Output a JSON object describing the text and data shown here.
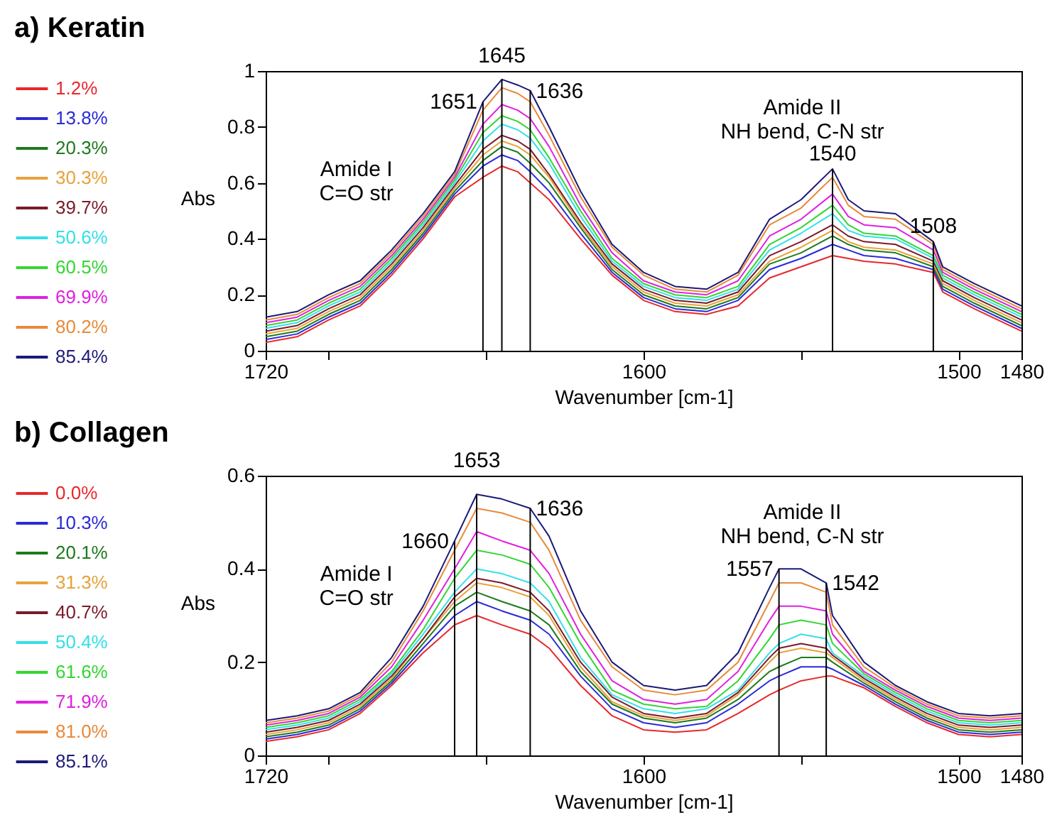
{
  "chart_data": [
    {
      "type": "line",
      "title": "a) Keratin",
      "xlabel": "Wavenumber [cm-1]",
      "ylabel": "Abs",
      "legend": "left",
      "marker": "none",
      "line_style": "solid",
      "xlim": [
        1720,
        1480
      ],
      "xticks": [
        1720,
        {
          "value": 1700,
          "label": null
        },
        {
          "value": 1650,
          "label": null
        },
        1600,
        {
          "value": 1550,
          "label": null
        },
        1500,
        1480
      ],
      "ylim": [
        0,
        1
      ],
      "yticks": [
        0,
        0.2,
        0.4,
        0.6,
        0.8,
        1
      ],
      "x": [
        1720,
        1710,
        1700,
        1690,
        1680,
        1670,
        1660,
        1651,
        1645,
        1640,
        1636,
        1630,
        1620,
        1610,
        1600,
        1590,
        1580,
        1570,
        1560,
        1550,
        1540,
        1535,
        1530,
        1520,
        1508,
        1505,
        1495,
        1480
      ],
      "series": [
        {
          "name": "1.2%",
          "color": "#e8282b",
          "values": [
            0.03,
            0.05,
            0.11,
            0.16,
            0.27,
            0.4,
            0.55,
            0.62,
            0.66,
            0.64,
            0.6,
            0.54,
            0.4,
            0.27,
            0.18,
            0.14,
            0.13,
            0.16,
            0.26,
            0.3,
            0.34,
            0.33,
            0.32,
            0.31,
            0.28,
            0.21,
            0.15,
            0.07
          ]
        },
        {
          "name": "13.8%",
          "color": "#2a2ad8",
          "values": [
            0.04,
            0.06,
            0.12,
            0.17,
            0.28,
            0.41,
            0.56,
            0.66,
            0.7,
            0.68,
            0.64,
            0.57,
            0.42,
            0.28,
            0.19,
            0.15,
            0.14,
            0.18,
            0.29,
            0.33,
            0.38,
            0.36,
            0.34,
            0.33,
            0.29,
            0.22,
            0.16,
            0.08
          ]
        },
        {
          "name": "20.3%",
          "color": "#1e7a1e",
          "values": [
            0.05,
            0.07,
            0.13,
            0.18,
            0.29,
            0.42,
            0.57,
            0.68,
            0.73,
            0.71,
            0.67,
            0.6,
            0.44,
            0.29,
            0.2,
            0.16,
            0.15,
            0.19,
            0.31,
            0.35,
            0.41,
            0.38,
            0.36,
            0.35,
            0.3,
            0.23,
            0.17,
            0.09
          ]
        },
        {
          "name": "30.3%",
          "color": "#e8a23c",
          "values": [
            0.06,
            0.08,
            0.14,
            0.19,
            0.3,
            0.43,
            0.58,
            0.7,
            0.75,
            0.73,
            0.7,
            0.62,
            0.45,
            0.3,
            0.21,
            0.17,
            0.16,
            0.2,
            0.32,
            0.37,
            0.43,
            0.39,
            0.37,
            0.36,
            0.31,
            0.24,
            0.18,
            0.1
          ]
        },
        {
          "name": "39.7%",
          "color": "#7a1a2a",
          "values": [
            0.07,
            0.09,
            0.15,
            0.2,
            0.31,
            0.44,
            0.59,
            0.72,
            0.77,
            0.75,
            0.72,
            0.63,
            0.46,
            0.31,
            0.22,
            0.18,
            0.17,
            0.21,
            0.34,
            0.39,
            0.45,
            0.41,
            0.39,
            0.38,
            0.32,
            0.25,
            0.19,
            0.11
          ]
        },
        {
          "name": "50.6%",
          "color": "#33e0e8",
          "values": [
            0.08,
            0.1,
            0.16,
            0.21,
            0.32,
            0.45,
            0.6,
            0.75,
            0.81,
            0.79,
            0.76,
            0.67,
            0.48,
            0.32,
            0.23,
            0.19,
            0.18,
            0.22,
            0.36,
            0.42,
            0.49,
            0.43,
            0.41,
            0.4,
            0.33,
            0.26,
            0.2,
            0.12
          ]
        },
        {
          "name": "60.5%",
          "color": "#33d633",
          "values": [
            0.09,
            0.11,
            0.17,
            0.22,
            0.33,
            0.46,
            0.61,
            0.78,
            0.84,
            0.82,
            0.79,
            0.69,
            0.5,
            0.33,
            0.24,
            0.2,
            0.19,
            0.23,
            0.38,
            0.44,
            0.52,
            0.45,
            0.42,
            0.41,
            0.34,
            0.27,
            0.21,
            0.13
          ]
        },
        {
          "name": "69.9%",
          "color": "#e020e0",
          "values": [
            0.1,
            0.12,
            0.18,
            0.23,
            0.34,
            0.47,
            0.62,
            0.81,
            0.88,
            0.86,
            0.83,
            0.73,
            0.52,
            0.35,
            0.25,
            0.21,
            0.2,
            0.25,
            0.41,
            0.47,
            0.56,
            0.48,
            0.45,
            0.44,
            0.36,
            0.28,
            0.22,
            0.14
          ]
        },
        {
          "name": "80.2%",
          "color": "#e88a3a",
          "values": [
            0.11,
            0.13,
            0.19,
            0.24,
            0.35,
            0.48,
            0.63,
            0.86,
            0.94,
            0.92,
            0.89,
            0.77,
            0.55,
            0.37,
            0.27,
            0.22,
            0.21,
            0.27,
            0.45,
            0.51,
            0.62,
            0.52,
            0.48,
            0.47,
            0.38,
            0.29,
            0.23,
            0.15
          ]
        },
        {
          "name": "85.4%",
          "color": "#1a1a78",
          "values": [
            0.12,
            0.14,
            0.2,
            0.25,
            0.36,
            0.49,
            0.64,
            0.89,
            0.97,
            0.95,
            0.93,
            0.8,
            0.57,
            0.38,
            0.28,
            0.23,
            0.22,
            0.28,
            0.47,
            0.54,
            0.65,
            0.54,
            0.5,
            0.49,
            0.39,
            0.3,
            0.24,
            0.16
          ]
        }
      ],
      "ref_lines": [
        {
          "axis": "x",
          "value": 1651,
          "label": "1651"
        },
        {
          "axis": "x",
          "value": 1645,
          "label": "1645"
        },
        {
          "axis": "x",
          "value": 1636,
          "label": "1636"
        },
        {
          "axis": "x",
          "value": 1540,
          "label": "1540"
        },
        {
          "axis": "x",
          "value": 1508,
          "label": "1508"
        }
      ],
      "annotations": [
        "Amide I\nC=O str",
        "Amide II\nNH bend, C-N str"
      ]
    },
    {
      "type": "line",
      "title": "b) Collagen",
      "xlabel": "Wavenumber [cm-1]",
      "ylabel": "Abs",
      "legend": "left",
      "marker": "none",
      "line_style": "solid",
      "xlim": [
        1720,
        1480
      ],
      "xticks": [
        1720,
        {
          "value": 1700,
          "label": null
        },
        {
          "value": 1650,
          "label": null
        },
        1600,
        {
          "value": 1550,
          "label": null
        },
        1500,
        1480
      ],
      "ylim": [
        0,
        0.6
      ],
      "yticks": [
        0,
        0.2,
        0.4,
        0.6
      ],
      "x": [
        1720,
        1710,
        1700,
        1690,
        1680,
        1670,
        1660,
        1653,
        1645,
        1636,
        1630,
        1620,
        1610,
        1600,
        1590,
        1580,
        1570,
        1560,
        1557,
        1550,
        1542,
        1540,
        1530,
        1520,
        1510,
        1500,
        1490,
        1480
      ],
      "series": [
        {
          "name": "0.0%",
          "color": "#e8282b",
          "values": [
            0.03,
            0.04,
            0.055,
            0.09,
            0.15,
            0.22,
            0.28,
            0.3,
            0.28,
            0.26,
            0.23,
            0.15,
            0.085,
            0.055,
            0.05,
            0.055,
            0.09,
            0.13,
            0.14,
            0.16,
            0.17,
            0.17,
            0.145,
            0.105,
            0.07,
            0.045,
            0.04,
            0.045
          ]
        },
        {
          "name": "10.3%",
          "color": "#2a2ad8",
          "values": [
            0.035,
            0.045,
            0.06,
            0.095,
            0.155,
            0.23,
            0.3,
            0.33,
            0.31,
            0.29,
            0.26,
            0.17,
            0.1,
            0.07,
            0.06,
            0.07,
            0.11,
            0.16,
            0.17,
            0.19,
            0.19,
            0.185,
            0.15,
            0.11,
            0.075,
            0.05,
            0.045,
            0.05
          ]
        },
        {
          "name": "20.1%",
          "color": "#1e7a1e",
          "values": [
            0.04,
            0.05,
            0.065,
            0.1,
            0.16,
            0.24,
            0.32,
            0.35,
            0.33,
            0.31,
            0.28,
            0.18,
            0.11,
            0.08,
            0.07,
            0.08,
            0.12,
            0.18,
            0.19,
            0.21,
            0.21,
            0.2,
            0.155,
            0.115,
            0.08,
            0.055,
            0.05,
            0.055
          ]
        },
        {
          "name": "31.3%",
          "color": "#e8a23c",
          "values": [
            0.045,
            0.055,
            0.07,
            0.105,
            0.165,
            0.25,
            0.33,
            0.37,
            0.36,
            0.34,
            0.3,
            0.19,
            0.115,
            0.085,
            0.075,
            0.085,
            0.13,
            0.2,
            0.22,
            0.23,
            0.22,
            0.21,
            0.16,
            0.12,
            0.085,
            0.06,
            0.055,
            0.06
          ]
        },
        {
          "name": "40.7%",
          "color": "#7a1a2a",
          "values": [
            0.05,
            0.06,
            0.075,
            0.11,
            0.17,
            0.25,
            0.34,
            0.38,
            0.37,
            0.35,
            0.31,
            0.2,
            0.125,
            0.09,
            0.08,
            0.09,
            0.135,
            0.21,
            0.23,
            0.24,
            0.23,
            0.215,
            0.165,
            0.125,
            0.09,
            0.065,
            0.06,
            0.065
          ]
        },
        {
          "name": "50.4%",
          "color": "#33e0e8",
          "values": [
            0.055,
            0.065,
            0.08,
            0.115,
            0.175,
            0.26,
            0.35,
            0.4,
            0.39,
            0.37,
            0.33,
            0.21,
            0.13,
            0.1,
            0.09,
            0.1,
            0.14,
            0.22,
            0.24,
            0.26,
            0.25,
            0.22,
            0.17,
            0.13,
            0.095,
            0.07,
            0.065,
            0.07
          ]
        },
        {
          "name": "61.6%",
          "color": "#33d633",
          "values": [
            0.06,
            0.07,
            0.085,
            0.12,
            0.18,
            0.27,
            0.38,
            0.44,
            0.43,
            0.41,
            0.36,
            0.24,
            0.14,
            0.11,
            0.1,
            0.105,
            0.16,
            0.25,
            0.28,
            0.29,
            0.28,
            0.24,
            0.175,
            0.135,
            0.1,
            0.075,
            0.07,
            0.075
          ]
        },
        {
          "name": "71.9%",
          "color": "#e020e0",
          "values": [
            0.065,
            0.075,
            0.09,
            0.125,
            0.19,
            0.29,
            0.4,
            0.48,
            0.46,
            0.44,
            0.39,
            0.26,
            0.16,
            0.12,
            0.11,
            0.12,
            0.18,
            0.29,
            0.32,
            0.32,
            0.31,
            0.26,
            0.18,
            0.14,
            0.105,
            0.08,
            0.075,
            0.08
          ]
        },
        {
          "name": "81.0%",
          "color": "#e88a3a",
          "values": [
            0.07,
            0.08,
            0.095,
            0.13,
            0.2,
            0.31,
            0.44,
            0.53,
            0.52,
            0.5,
            0.44,
            0.29,
            0.19,
            0.14,
            0.13,
            0.14,
            0.2,
            0.33,
            0.37,
            0.37,
            0.35,
            0.28,
            0.19,
            0.145,
            0.11,
            0.085,
            0.08,
            0.085
          ]
        },
        {
          "name": "85.1%",
          "color": "#1a1a78",
          "values": [
            0.075,
            0.085,
            0.1,
            0.135,
            0.21,
            0.32,
            0.46,
            0.56,
            0.55,
            0.53,
            0.47,
            0.31,
            0.2,
            0.15,
            0.14,
            0.15,
            0.22,
            0.36,
            0.4,
            0.4,
            0.37,
            0.3,
            0.2,
            0.15,
            0.115,
            0.09,
            0.085,
            0.09
          ]
        }
      ],
      "ref_lines": [
        {
          "axis": "x",
          "value": 1660,
          "label": "1660"
        },
        {
          "axis": "x",
          "value": 1653,
          "label": "1653"
        },
        {
          "axis": "x",
          "value": 1636,
          "label": "1636"
        },
        {
          "axis": "x",
          "value": 1557,
          "label": "1557"
        },
        {
          "axis": "x",
          "value": 1542,
          "label": "1542"
        }
      ],
      "annotations": [
        "Amide I\nC=O str",
        "Amide II\nNH bend, C-N str"
      ]
    }
  ]
}
